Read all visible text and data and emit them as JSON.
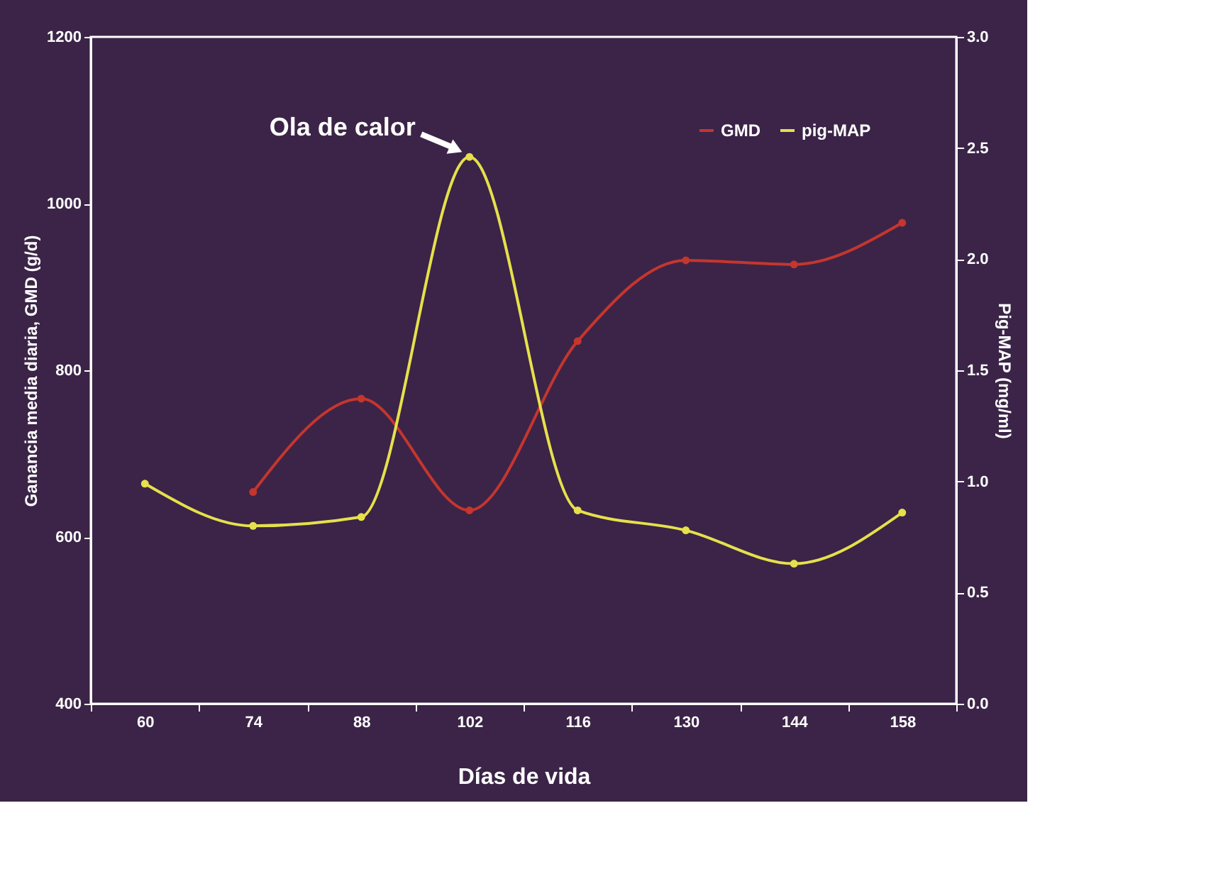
{
  "chart_data": {
    "type": "line",
    "xlabel": "Días de vida",
    "ylabel": "Ganancia media diaria, GMD (g/d)",
    "y2label": "Pig-MAP (mg/ml)",
    "categories": [
      "60",
      "74",
      "88",
      "102",
      "116",
      "130",
      "144",
      "158"
    ],
    "series": [
      {
        "name": "GMD",
        "color": "#c4362e",
        "values": [
          null,
          654,
          766,
          632,
          835,
          932,
          927,
          977
        ]
      },
      {
        "name": "pig-MAP",
        "color": "#e6e04c",
        "axis": "y2",
        "values": [
          0.99,
          0.8,
          0.84,
          2.46,
          0.87,
          0.78,
          0.63,
          0.86
        ]
      }
    ],
    "ylim": [
      400,
      1200
    ],
    "yticks": [
      400,
      600,
      800,
      1000,
      1200
    ],
    "y2lim": [
      0,
      3.0
    ],
    "y2ticks": [
      {
        "value": 0,
        "label": "0.0"
      },
      {
        "value": 0.5,
        "label": "0.5"
      },
      {
        "value": 1,
        "label": "1.0"
      },
      {
        "value": 1.5,
        "label": "1.5"
      },
      {
        "value": 2,
        "label": "2.0"
      },
      {
        "value": 2.5,
        "label": "2.5"
      },
      {
        "value": 3,
        "label": "3.0"
      }
    ],
    "annotations": [
      {
        "text": "Ola de calor",
        "x": "102",
        "y": 1056
      }
    ],
    "grid": false,
    "legend": "top right",
    "marker": "circle"
  }
}
